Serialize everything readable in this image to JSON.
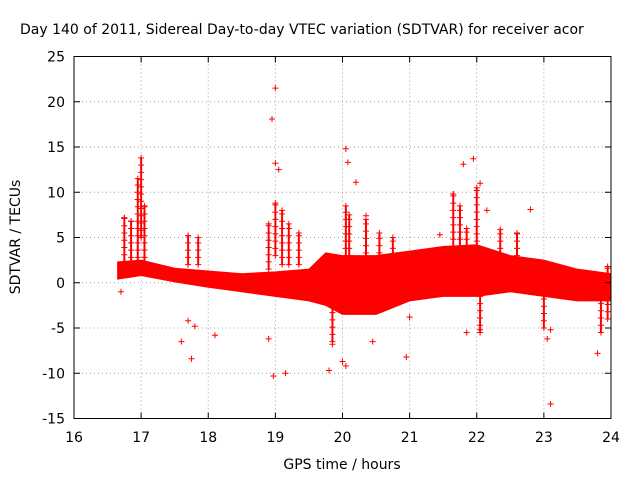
{
  "chart_data": {
    "type": "scatter",
    "title": "Day 140 of 2011, Sidereal Day-to-day VTEC variation (SDTVAR) for receiver acor",
    "xlabel": "GPS time / hours",
    "ylabel": "SDTVAR / TECUs",
    "xlim": [
      16,
      24
    ],
    "ylim": [
      -15,
      25
    ],
    "xticks": [
      16,
      17,
      18,
      19,
      20,
      21,
      22,
      23,
      24
    ],
    "yticks": [
      -15,
      -10,
      -5,
      0,
      5,
      10,
      15,
      20,
      25
    ],
    "grid": true,
    "marker": "+",
    "color": "#ff0000",
    "dense_band": [
      {
        "x": 16.65,
        "low": 0.4,
        "high": 2.3
      },
      {
        "x": 17.0,
        "low": 0.8,
        "high": 2.5
      },
      {
        "x": 17.5,
        "low": 0.1,
        "high": 1.6
      },
      {
        "x": 18.0,
        "low": -0.5,
        "high": 1.3
      },
      {
        "x": 18.5,
        "low": -1.0,
        "high": 1.0
      },
      {
        "x": 19.0,
        "low": -1.5,
        "high": 1.2
      },
      {
        "x": 19.5,
        "low": -2.0,
        "high": 1.5
      },
      {
        "x": 19.75,
        "low": -2.5,
        "high": 3.3
      },
      {
        "x": 20.0,
        "low": -3.5,
        "high": 3.0
      },
      {
        "x": 20.5,
        "low": -3.5,
        "high": 3.0
      },
      {
        "x": 21.0,
        "low": -2.0,
        "high": 3.5
      },
      {
        "x": 21.5,
        "low": -1.5,
        "high": 4.0
      },
      {
        "x": 22.0,
        "low": -1.5,
        "high": 4.2
      },
      {
        "x": 22.5,
        "low": -1.0,
        "high": 3.0
      },
      {
        "x": 23.0,
        "low": -1.5,
        "high": 2.5
      },
      {
        "x": 23.5,
        "low": -2.0,
        "high": 1.5
      },
      {
        "x": 24.0,
        "low": -2.0,
        "high": 1.0
      }
    ],
    "excursions": [
      {
        "x": 16.75,
        "y_from": 1.5,
        "y_to": 7.2
      },
      {
        "x": 16.85,
        "y_from": 2.0,
        "y_to": 6.8
      },
      {
        "x": 16.95,
        "y_from": 2.0,
        "y_to": 11.5
      },
      {
        "x": 17.0,
        "y_from": 5.0,
        "y_to": 13.8
      },
      {
        "x": 17.05,
        "y_from": 2.0,
        "y_to": 8.5
      },
      {
        "x": 17.7,
        "y_from": 2.0,
        "y_to": 5.2
      },
      {
        "x": 17.85,
        "y_from": 2.0,
        "y_to": 5.0
      },
      {
        "x": 18.9,
        "y_from": 1.5,
        "y_to": 6.5
      },
      {
        "x": 19.0,
        "y_from": 3.0,
        "y_to": 8.8
      },
      {
        "x": 19.1,
        "y_from": 2.0,
        "y_to": 8.0
      },
      {
        "x": 19.2,
        "y_from": 2.0,
        "y_to": 6.5
      },
      {
        "x": 19.35,
        "y_from": 2.0,
        "y_to": 5.5
      },
      {
        "x": 19.85,
        "y_from": -6.5,
        "y_to": 1.0
      },
      {
        "x": 20.05,
        "y_from": 3.0,
        "y_to": 8.5
      },
      {
        "x": 20.1,
        "y_from": 3.0,
        "y_to": 7.5
      },
      {
        "x": 20.35,
        "y_from": 2.5,
        "y_to": 7.0
      },
      {
        "x": 20.55,
        "y_from": 2.5,
        "y_to": 5.5
      },
      {
        "x": 20.75,
        "y_from": 3.0,
        "y_to": 5.0
      },
      {
        "x": 21.65,
        "y_from": 4.0,
        "y_to": 9.8
      },
      {
        "x": 21.75,
        "y_from": 4.0,
        "y_to": 8.5
      },
      {
        "x": 21.85,
        "y_from": 4.0,
        "y_to": 6.0
      },
      {
        "x": 22.0,
        "y_from": 3.0,
        "y_to": 10.5
      },
      {
        "x": 22.05,
        "y_from": -5.5,
        "y_to": -1.0
      },
      {
        "x": 22.35,
        "y_from": 3.0,
        "y_to": 5.9
      },
      {
        "x": 22.6,
        "y_from": 3.0,
        "y_to": 5.5
      },
      {
        "x": 23.0,
        "y_from": -5.0,
        "y_to": -1.0
      },
      {
        "x": 23.85,
        "y_from": -5.5,
        "y_to": -1.5
      },
      {
        "x": 23.95,
        "y_from": -4.0,
        "y_to": 1.8
      }
    ],
    "outliers": [
      {
        "x": 16.7,
        "y": -1.0
      },
      {
        "x": 17.6,
        "y": -6.5
      },
      {
        "x": 17.7,
        "y": -4.2
      },
      {
        "x": 17.75,
        "y": -8.4
      },
      {
        "x": 17.8,
        "y": -4.8
      },
      {
        "x": 18.1,
        "y": -5.8
      },
      {
        "x": 18.9,
        "y": -6.2
      },
      {
        "x": 18.95,
        "y": 18.1
      },
      {
        "x": 19.0,
        "y": 21.5
      },
      {
        "x": 19.0,
        "y": 13.2
      },
      {
        "x": 19.05,
        "y": 12.5
      },
      {
        "x": 18.97,
        "y": -10.3
      },
      {
        "x": 19.15,
        "y": -10.0
      },
      {
        "x": 19.8,
        "y": -9.7
      },
      {
        "x": 19.85,
        "y": -6.8
      },
      {
        "x": 20.0,
        "y": -8.7
      },
      {
        "x": 20.05,
        "y": -9.2
      },
      {
        "x": 20.05,
        "y": 14.8
      },
      {
        "x": 20.08,
        "y": 13.3
      },
      {
        "x": 20.2,
        "y": 11.1
      },
      {
        "x": 20.35,
        "y": 7.4
      },
      {
        "x": 20.45,
        "y": -6.5
      },
      {
        "x": 20.95,
        "y": -8.2
      },
      {
        "x": 21.0,
        "y": -3.8
      },
      {
        "x": 21.45,
        "y": 5.3
      },
      {
        "x": 21.65,
        "y": 9.8
      },
      {
        "x": 21.8,
        "y": 13.1
      },
      {
        "x": 21.85,
        "y": -5.5
      },
      {
        "x": 21.95,
        "y": 13.7
      },
      {
        "x": 22.05,
        "y": 11.0
      },
      {
        "x": 22.05,
        "y": -5.2
      },
      {
        "x": 22.15,
        "y": 8.0
      },
      {
        "x": 22.8,
        "y": 8.1
      },
      {
        "x": 23.05,
        "y": -6.2
      },
      {
        "x": 23.1,
        "y": -5.2
      },
      {
        "x": 23.1,
        "y": -13.4
      },
      {
        "x": 23.8,
        "y": -7.8
      }
    ]
  }
}
